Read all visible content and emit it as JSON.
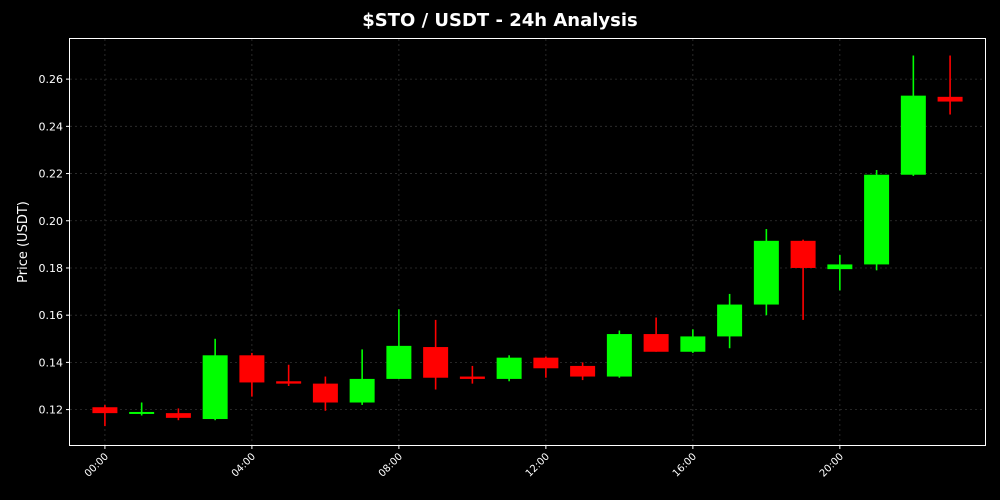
{
  "chart_data": {
    "type": "candlestick",
    "title": "$STO / USDT - 24h Analysis",
    "xlabel": "",
    "ylabel": "Price (USDT)",
    "ylim": [
      0.105,
      0.277
    ],
    "grid": true,
    "colors": {
      "background": "#000000",
      "axis": "#ffffff",
      "grid": "#333333",
      "up": "#00ff00",
      "down": "#ff0000"
    },
    "x_tick_labels": [
      "00:00",
      "04:00",
      "08:00",
      "12:00",
      "16:00",
      "20:00"
    ],
    "x_tick_hours": [
      0,
      4,
      8,
      12,
      16,
      20
    ],
    "y_tick_labels": [
      "0.12",
      "0.14",
      "0.16",
      "0.18",
      "0.20",
      "0.22",
      "0.24",
      "0.26"
    ],
    "y_tick_values": [
      0.12,
      0.14,
      0.16,
      0.18,
      0.2,
      0.22,
      0.24,
      0.26
    ],
    "candles": [
      {
        "hour": 0,
        "open": 0.121,
        "high": 0.122,
        "low": 0.113,
        "close": 0.1185
      },
      {
        "hour": 1,
        "open": 0.1185,
        "high": 0.123,
        "low": 0.1175,
        "close": 0.119
      },
      {
        "hour": 2,
        "open": 0.1185,
        "high": 0.1205,
        "low": 0.1155,
        "close": 0.1165
      },
      {
        "hour": 3,
        "open": 0.116,
        "high": 0.15,
        "low": 0.1155,
        "close": 0.143
      },
      {
        "hour": 4,
        "open": 0.143,
        "high": 0.144,
        "low": 0.1255,
        "close": 0.1315
      },
      {
        "hour": 5,
        "open": 0.132,
        "high": 0.139,
        "low": 0.13,
        "close": 0.131
      },
      {
        "hour": 6,
        "open": 0.131,
        "high": 0.134,
        "low": 0.1195,
        "close": 0.123
      },
      {
        "hour": 7,
        "open": 0.123,
        "high": 0.1455,
        "low": 0.122,
        "close": 0.133
      },
      {
        "hour": 8,
        "open": 0.133,
        "high": 0.1625,
        "low": 0.133,
        "close": 0.147
      },
      {
        "hour": 9,
        "open": 0.1465,
        "high": 0.158,
        "low": 0.1285,
        "close": 0.1335
      },
      {
        "hour": 10,
        "open": 0.134,
        "high": 0.1385,
        "low": 0.131,
        "close": 0.133
      },
      {
        "hour": 11,
        "open": 0.133,
        "high": 0.143,
        "low": 0.132,
        "close": 0.142
      },
      {
        "hour": 12,
        "open": 0.142,
        "high": 0.1425,
        "low": 0.1335,
        "close": 0.1375
      },
      {
        "hour": 13,
        "open": 0.1385,
        "high": 0.14,
        "low": 0.1325,
        "close": 0.134
      },
      {
        "hour": 14,
        "open": 0.134,
        "high": 0.1535,
        "low": 0.1335,
        "close": 0.152
      },
      {
        "hour": 15,
        "open": 0.152,
        "high": 0.159,
        "low": 0.1445,
        "close": 0.1445
      },
      {
        "hour": 16,
        "open": 0.1445,
        "high": 0.154,
        "low": 0.144,
        "close": 0.151
      },
      {
        "hour": 17,
        "open": 0.151,
        "high": 0.169,
        "low": 0.146,
        "close": 0.1645
      },
      {
        "hour": 18,
        "open": 0.1645,
        "high": 0.1965,
        "low": 0.16,
        "close": 0.1915
      },
      {
        "hour": 19,
        "open": 0.1915,
        "high": 0.192,
        "low": 0.158,
        "close": 0.18
      },
      {
        "hour": 20,
        "open": 0.1795,
        "high": 0.1855,
        "low": 0.1705,
        "close": 0.1815
      },
      {
        "hour": 21,
        "open": 0.1815,
        "high": 0.2215,
        "low": 0.179,
        "close": 0.2195
      },
      {
        "hour": 22,
        "open": 0.2195,
        "high": 0.27,
        "low": 0.219,
        "close": 0.253
      },
      {
        "hour": 23,
        "open": 0.2525,
        "high": 0.27,
        "low": 0.245,
        "close": 0.2505
      }
    ]
  }
}
